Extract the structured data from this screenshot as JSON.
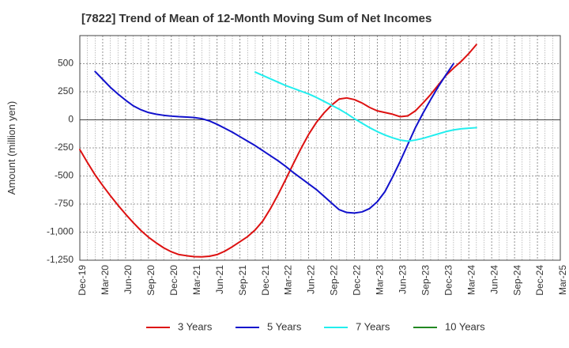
{
  "chart_data": {
    "type": "line",
    "title": "[7822]  Trend of Mean of 12-Month Moving Sum of Net Incomes",
    "ylabel": "Amount (million yen)",
    "xlabel": "",
    "ylim": [
      -1250,
      750
    ],
    "yticks": [
      500,
      250,
      0,
      -250,
      -500,
      -750,
      -1000,
      -1250
    ],
    "ytick_labels": [
      "500",
      "250",
      "0",
      "-250",
      "-500",
      "-750",
      "-1,000",
      "-1,250"
    ],
    "xticks": [
      "Dec-19",
      "Mar-20",
      "Jun-20",
      "Sep-20",
      "Dec-20",
      "Mar-21",
      "Jun-21",
      "Sep-21",
      "Dec-21",
      "Mar-22",
      "Jun-22",
      "Sep-22",
      "Dec-22",
      "Mar-23",
      "Jun-23",
      "Sep-23",
      "Dec-23",
      "Mar-24",
      "Jun-24",
      "Sep-24",
      "Dec-24",
      "Mar-25"
    ],
    "grid": true,
    "legend_position": "bottom",
    "series": [
      {
        "name": "3 Years",
        "color": "#dd1111",
        "start_index": 0,
        "values": [
          -265,
          -380,
          -490,
          -585,
          -675,
          -760,
          -840,
          -915,
          -985,
          -1045,
          -1095,
          -1140,
          -1175,
          -1200,
          -1210,
          -1218,
          -1220,
          -1215,
          -1200,
          -1170,
          -1130,
          -1085,
          -1040,
          -980,
          -900,
          -790,
          -665,
          -530,
          -390,
          -255,
          -130,
          -25,
          60,
          130,
          185,
          195,
          180,
          150,
          110,
          80,
          65,
          50,
          28,
          35,
          80,
          150,
          225,
          310,
          395,
          460,
          520,
          590,
          670
        ]
      },
      {
        "name": "5 Years",
        "color": "#1111cc",
        "start_index": 2,
        "values": [
          430,
          360,
          290,
          230,
          175,
          125,
          90,
          65,
          50,
          40,
          33,
          28,
          25,
          20,
          10,
          -10,
          -40,
          -75,
          -110,
          -150,
          -190,
          -230,
          -275,
          -320,
          -365,
          -415,
          -470,
          -520,
          -570,
          -620,
          -680,
          -740,
          -800,
          -825,
          -830,
          -820,
          -790,
          -730,
          -640,
          -510,
          -370,
          -220,
          -70,
          60,
          180,
          295,
          400,
          500
        ]
      },
      {
        "name": "7 Years",
        "color": "#22eeee",
        "start_index": 23,
        "values": [
          425,
          395,
          365,
          335,
          305,
          280,
          255,
          230,
          200,
          165,
          130,
          95,
          55,
          10,
          -30,
          -70,
          -105,
          -135,
          -160,
          -180,
          -190,
          -180,
          -165,
          -145,
          -125,
          -105,
          -90,
          -80,
          -75,
          -70
        ]
      },
      {
        "name": "10 Years",
        "color": "#228822",
        "start_index": 0,
        "values": []
      }
    ]
  }
}
